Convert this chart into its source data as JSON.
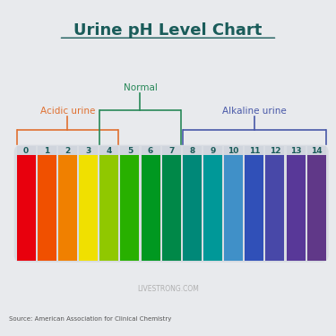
{
  "title": "Urine pH Level Chart",
  "title_color": "#1a5c5a",
  "background_color": "#e8eaed",
  "ph_values": [
    0,
    1,
    2,
    3,
    4,
    5,
    6,
    7,
    8,
    9,
    10,
    11,
    12,
    13,
    14
  ],
  "bar_colors": [
    "#e8000d",
    "#f05000",
    "#f08000",
    "#f0e000",
    "#90c800",
    "#28b000",
    "#009820",
    "#008848",
    "#008878",
    "#009898",
    "#4090c8",
    "#3050b8",
    "#4848a8",
    "#583898",
    "#603888"
  ],
  "label_color": "#1a5c5a",
  "acidic_label": "Acidic urine",
  "acidic_color": "#e07030",
  "normal_label": "Normal",
  "normal_color": "#288858",
  "alkaline_label": "Alkaline urine",
  "alkaline_color": "#4858a8",
  "watermark": "LIVESTRONG.COM",
  "source": "Source: American Association for Clinical Chemistry"
}
